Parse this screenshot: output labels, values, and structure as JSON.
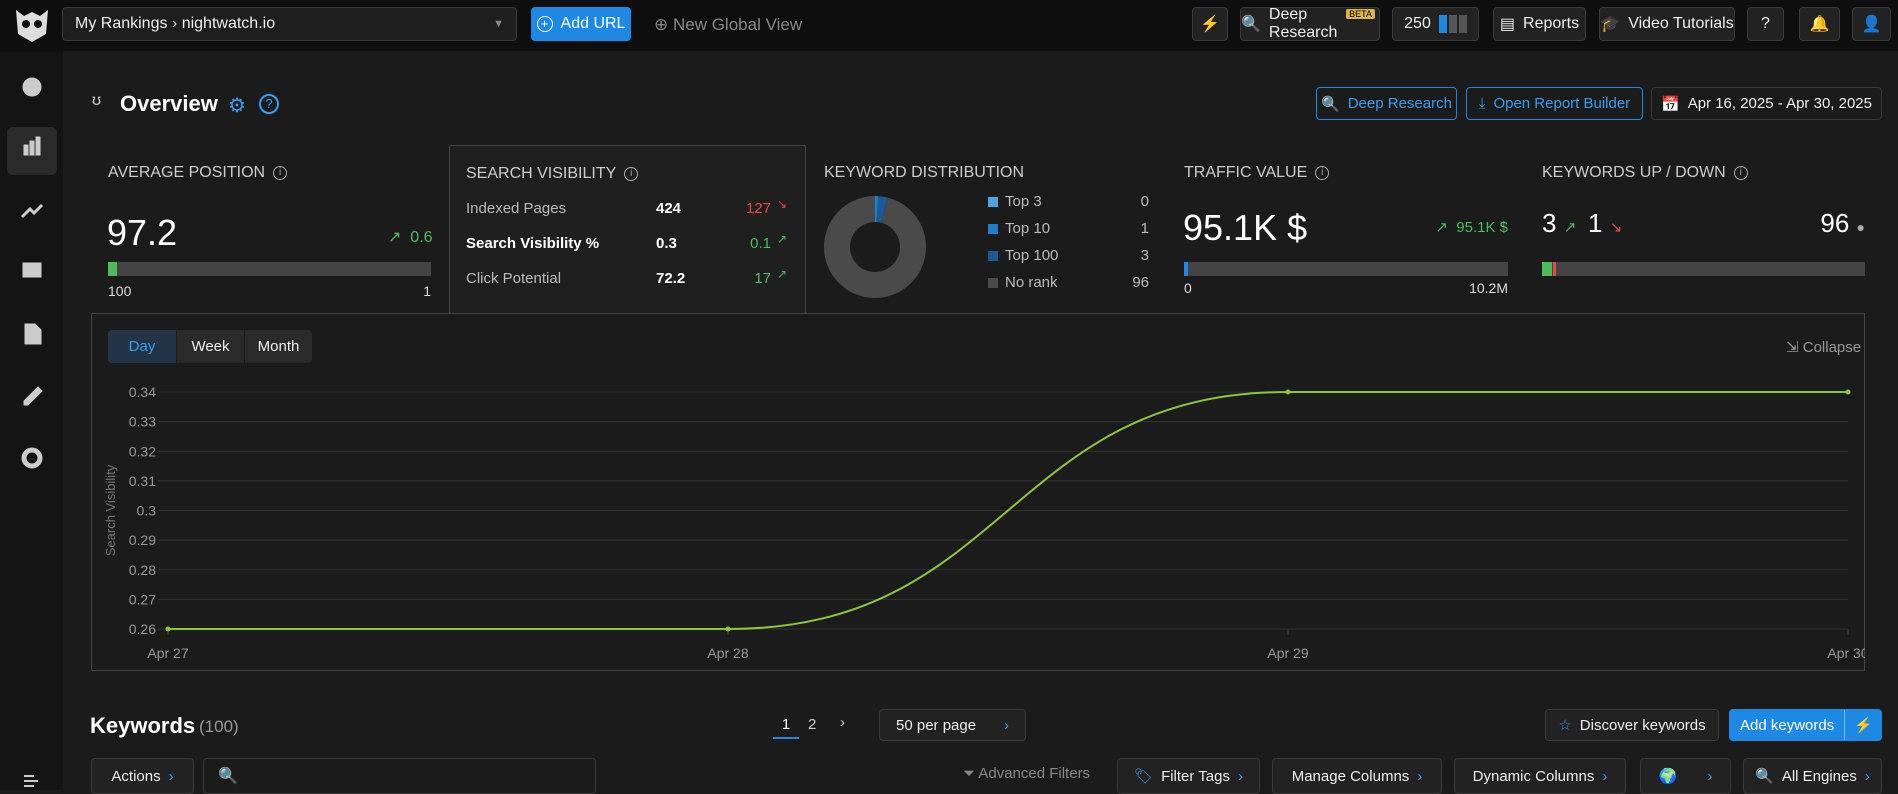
{
  "topbar": {
    "breadcrumb": "My Rankings › nightwatch.io",
    "add_url": "Add URL",
    "new_global_view": "New Global View",
    "deep_research": "Deep Research",
    "beta": "BETA",
    "credits": "250",
    "reports": "Reports",
    "video_tutorials": "Video Tutorials"
  },
  "header": {
    "title": "Overview",
    "deep_research": "Deep Research",
    "open_report_builder": "Open Report Builder",
    "date_range": "Apr 16, 2025 - Apr 30, 2025"
  },
  "average_position": {
    "title": "AVERAGE POSITION",
    "value": "97.2",
    "change": "0.6",
    "min_label": "100",
    "max_label": "1"
  },
  "search_visibility": {
    "title": "SEARCH VISIBILITY",
    "rows": [
      {
        "label": "Indexed Pages",
        "value": "424",
        "change": "127"
      },
      {
        "label": "Search Visibility %",
        "value": "0.3",
        "change": "0.1"
      },
      {
        "label": "Click Potential",
        "value": "72.2",
        "change": "17"
      }
    ]
  },
  "keyword_distribution": {
    "title": "KEYWORD DISTRIBUTION",
    "items": [
      {
        "label": "Top 3",
        "value": 0,
        "color": "#4fa3e0"
      },
      {
        "label": "Top 10",
        "value": 1,
        "color": "#1e7fd0"
      },
      {
        "label": "Top 100",
        "value": 3,
        "color": "#1a5a9a"
      },
      {
        "label": "No rank",
        "value": 96,
        "color": "#4a4a4a"
      }
    ]
  },
  "traffic_value": {
    "title": "TRAFFIC VALUE",
    "value": "95.1K $",
    "change": "95.1K $",
    "min_label": "0",
    "max_label": "10.2M"
  },
  "keywords_up_down": {
    "title": "KEYWORDS UP / DOWN",
    "up": "3",
    "down": "1",
    "unchanged": "96"
  },
  "chart_tabs": [
    "Day",
    "Week",
    "Month"
  ],
  "collapse": "Collapse",
  "chart_data": {
    "type": "line",
    "y_label": "Search Visibility",
    "categories": [
      "Apr 27",
      "Apr 28",
      "Apr 29",
      "Apr 30"
    ],
    "values": [
      0.26,
      0.26,
      0.34,
      0.34
    ],
    "color": "#8cc63f",
    "ylim": [
      0.26,
      0.34
    ],
    "yticks": [
      0.26,
      0.27,
      0.28,
      0.29,
      0.3,
      0.31,
      0.32,
      0.33,
      0.34
    ],
    "grid": true
  },
  "keywords": {
    "title": "Keywords",
    "count": "(100)",
    "pages": [
      "1",
      "2"
    ],
    "per_page": "50 per page",
    "discover": "Discover keywords",
    "add": "Add keywords"
  },
  "toolbar": {
    "actions": "Actions",
    "advanced_filters": "Advanced Filters",
    "filter_tags": "Filter Tags",
    "manage_columns": "Manage Columns",
    "dynamic_columns": "Dynamic Columns",
    "all_engines": "All Engines"
  }
}
